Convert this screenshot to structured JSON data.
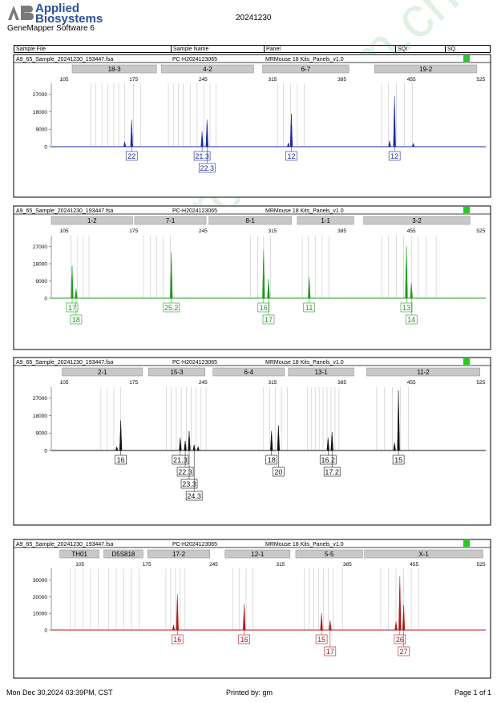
{
  "header": {
    "brand_line1": "Applied",
    "brand_line2": "Biosystems",
    "software": "GeneMapper Software 6",
    "report_date": "20241230",
    "columns": [
      "Sample File",
      "Sample Name",
      "Panel",
      "SQI",
      "SQ"
    ]
  },
  "footer": {
    "printed_on": "Mon Dec 30,2024 03:39PM, CST",
    "printed_by": "Printed by: gm",
    "page": "Page 1 of 1"
  },
  "watermark": "www.procell.com.cn",
  "chart_data": [
    {
      "type": "electropherogram",
      "sample_file": "A9_65_Sample_20241230_193447.fsa",
      "sample_name": "PC-H2024123065",
      "panel": "MRMouse 18 Kits_Panels_v1.0",
      "color": "#1a2aa0",
      "status_color": "#22cc22",
      "x_ticks": [
        105,
        175,
        245,
        315,
        385,
        455,
        525
      ],
      "xlim": [
        92,
        530
      ],
      "y_ticks": [
        0,
        9000,
        18000,
        27000
      ],
      "ylim": [
        0,
        31000
      ],
      "markers": [
        {
          "name": "18-3",
          "start": 113,
          "end": 198
        },
        {
          "name": "4-2",
          "start": 203,
          "end": 296
        },
        {
          "name": "6-7",
          "start": 305,
          "end": 392
        },
        {
          "name": "19-2",
          "start": 418,
          "end": 521
        }
      ],
      "bins": [
        132,
        137,
        143,
        149,
        155,
        160,
        166,
        175,
        182,
        210,
        215,
        220,
        225,
        232,
        239,
        246,
        252,
        258,
        320,
        326,
        333,
        340,
        347,
        425,
        432,
        440,
        448,
        456
      ],
      "peaks": [
        {
          "x": 173,
          "y": 14000
        },
        {
          "x": 166,
          "y": 2500
        },
        {
          "x": 244,
          "y": 7800
        },
        {
          "x": 249,
          "y": 14000
        },
        {
          "x": 334,
          "y": 17000
        },
        {
          "x": 331,
          "y": 2000
        },
        {
          "x": 438,
          "y": 26000
        },
        {
          "x": 433,
          "y": 3000
        },
        {
          "x": 457,
          "y": 1800
        }
      ],
      "allele_labels": [
        {
          "x": 173,
          "text": "22",
          "row": 0
        },
        {
          "x": 244,
          "text": "21.3",
          "row": 0
        },
        {
          "x": 249,
          "text": "22.3",
          "row": 1
        },
        {
          "x": 334,
          "text": "12",
          "row": 0
        },
        {
          "x": 438,
          "text": "12",
          "row": 0
        }
      ]
    },
    {
      "type": "electropherogram",
      "sample_file": "A9_65_Sample_20241230_193447.fsa",
      "sample_name": "PC-H2024123065",
      "panel": "MRMouse 18 Kits_Panels_v1.0",
      "color": "#1f9a1f",
      "status_color": "#22cc22",
      "x_ticks": [
        105,
        175,
        245,
        315,
        385,
        455,
        525
      ],
      "xlim": [
        92,
        530
      ],
      "y_ticks": [
        0,
        9000,
        18000,
        27000
      ],
      "ylim": [
        0,
        31000
      ],
      "markers": [
        {
          "name": "1-2",
          "start": 92,
          "end": 174
        },
        {
          "name": "7-1",
          "start": 176,
          "end": 248
        },
        {
          "name": "8-1",
          "start": 251,
          "end": 334
        },
        {
          "name": "1-1",
          "start": 340,
          "end": 397
        },
        {
          "name": "3-2",
          "start": 407,
          "end": 514
        }
      ],
      "bins": [
        112,
        118,
        124,
        130,
        185,
        192,
        198,
        205,
        212,
        293,
        300,
        306,
        313,
        345,
        351,
        358,
        365,
        372,
        425,
        432,
        440,
        447,
        455,
        462,
        470,
        480
      ],
      "peaks": [
        {
          "x": 113,
          "y": 17000
        },
        {
          "x": 117,
          "y": 5000
        },
        {
          "x": 213,
          "y": 24000
        },
        {
          "x": 306,
          "y": 25000
        },
        {
          "x": 311,
          "y": 10000
        },
        {
          "x": 352,
          "y": 11000
        },
        {
          "x": 450,
          "y": 27000
        },
        {
          "x": 455,
          "y": 8000
        }
      ],
      "allele_labels": [
        {
          "x": 113,
          "text": "17",
          "row": 0
        },
        {
          "x": 117,
          "text": "18",
          "row": 1
        },
        {
          "x": 213,
          "text": "25.2",
          "row": 0
        },
        {
          "x": 306,
          "text": "16",
          "row": 0
        },
        {
          "x": 311,
          "text": "17",
          "row": 1
        },
        {
          "x": 352,
          "text": "11",
          "row": 0
        },
        {
          "x": 450,
          "text": "13",
          "row": 0
        },
        {
          "x": 455,
          "text": "14",
          "row": 1
        }
      ]
    },
    {
      "type": "electropherogram",
      "sample_file": "A9_65_Sample_20241230_193447.fsa",
      "sample_name": "PC-H2024123065",
      "panel": "MRMouse 18 Kits_Panels_v1.0",
      "color": "#111111",
      "status_color": "#22cc22",
      "x_ticks": [
        105,
        175,
        245,
        315,
        385,
        455,
        525
      ],
      "xlim": [
        92,
        530
      ],
      "y_ticks": [
        0,
        9000,
        18000,
        27000
      ],
      "ylim": [
        0,
        31000
      ],
      "markers": [
        {
          "name": "2-1",
          "start": 103,
          "end": 184
        },
        {
          "name": "15-3",
          "start": 190,
          "end": 247
        },
        {
          "name": "6-4",
          "start": 255,
          "end": 327
        },
        {
          "name": "13-1",
          "start": 331,
          "end": 397
        },
        {
          "name": "11-2",
          "start": 410,
          "end": 524
        }
      ],
      "bins": [
        142,
        148,
        155,
        162,
        208,
        213,
        218,
        223,
        228,
        233,
        238,
        243,
        248,
        306,
        312,
        318,
        324,
        330,
        350,
        354,
        358,
        362,
        366,
        370,
        374,
        378,
        382,
        420,
        428,
        436,
        444,
        452
      ],
      "peaks": [
        {
          "x": 162,
          "y": 15500
        },
        {
          "x": 158,
          "y": 2000
        },
        {
          "x": 222,
          "y": 6500
        },
        {
          "x": 227,
          "y": 5000
        },
        {
          "x": 231,
          "y": 10000
        },
        {
          "x": 236,
          "y": 3000
        },
        {
          "x": 240,
          "y": 2000
        },
        {
          "x": 314,
          "y": 10000
        },
        {
          "x": 321,
          "y": 13000
        },
        {
          "x": 371,
          "y": 6500
        },
        {
          "x": 375,
          "y": 9500
        },
        {
          "x": 442,
          "y": 31000
        },
        {
          "x": 438,
          "y": 4000
        }
      ],
      "allele_labels": [
        {
          "x": 162,
          "text": "16",
          "row": 0
        },
        {
          "x": 222,
          "text": "21.3",
          "row": 0
        },
        {
          "x": 227,
          "text": "22.3",
          "row": 1
        },
        {
          "x": 231,
          "text": "23.3",
          "row": 2
        },
        {
          "x": 236,
          "text": "24.3",
          "row": 3
        },
        {
          "x": 314,
          "text": "18",
          "row": 0
        },
        {
          "x": 321,
          "text": "20",
          "row": 1
        },
        {
          "x": 371,
          "text": "16.2",
          "row": 0
        },
        {
          "x": 375,
          "text": "17.2",
          "row": 1
        },
        {
          "x": 442,
          "text": "15",
          "row": 0
        }
      ]
    },
    {
      "type": "electropherogram",
      "sample_file": "A9_65_Sample_20241230_193447.fsa",
      "sample_name": "PC-H2024123065",
      "panel": "MRMouse 18 Kits_Panels_v1.0",
      "color": "#b01818",
      "status_color": "#22cc22",
      "x_ticks": [
        105,
        175,
        245,
        315,
        385,
        455,
        525
      ],
      "xlim": [
        75,
        530
      ],
      "y_ticks": [
        0,
        10000,
        20000,
        30000
      ],
      "ylim": [
        0,
        35000
      ],
      "markers": [
        {
          "name": "TH01",
          "start": 84,
          "end": 125
        },
        {
          "name": "D5S818",
          "start": 130,
          "end": 171
        },
        {
          "name": "17-2",
          "start": 176,
          "end": 241
        },
        {
          "name": "12-1",
          "start": 257,
          "end": 325
        },
        {
          "name": "5-5",
          "start": 331,
          "end": 401
        },
        {
          "name": "X-1",
          "start": 403,
          "end": 527
        }
      ],
      "bins": [
        95,
        100,
        108,
        116,
        124,
        135,
        143,
        151,
        159,
        167,
        195,
        200,
        205,
        210,
        215,
        265,
        272,
        279,
        286,
        340,
        345,
        350,
        355,
        360,
        365,
        370,
        380,
        420,
        428,
        436,
        444,
        452,
        460
      ],
      "peaks": [
        {
          "x": 207,
          "y": 21500
        },
        {
          "x": 203,
          "y": 3000
        },
        {
          "x": 277,
          "y": 15500
        },
        {
          "x": 358,
          "y": 10000
        },
        {
          "x": 367,
          "y": 6000
        },
        {
          "x": 440,
          "y": 32000
        },
        {
          "x": 444,
          "y": 15000
        },
        {
          "x": 436,
          "y": 5000
        }
      ],
      "allele_labels": [
        {
          "x": 207,
          "text": "16",
          "row": 0
        },
        {
          "x": 277,
          "text": "16",
          "row": 0
        },
        {
          "x": 358,
          "text": "15",
          "row": 0
        },
        {
          "x": 367,
          "text": "17",
          "row": 1
        },
        {
          "x": 440,
          "text": "26",
          "row": 0
        },
        {
          "x": 444,
          "text": "27",
          "row": 1
        }
      ]
    }
  ]
}
